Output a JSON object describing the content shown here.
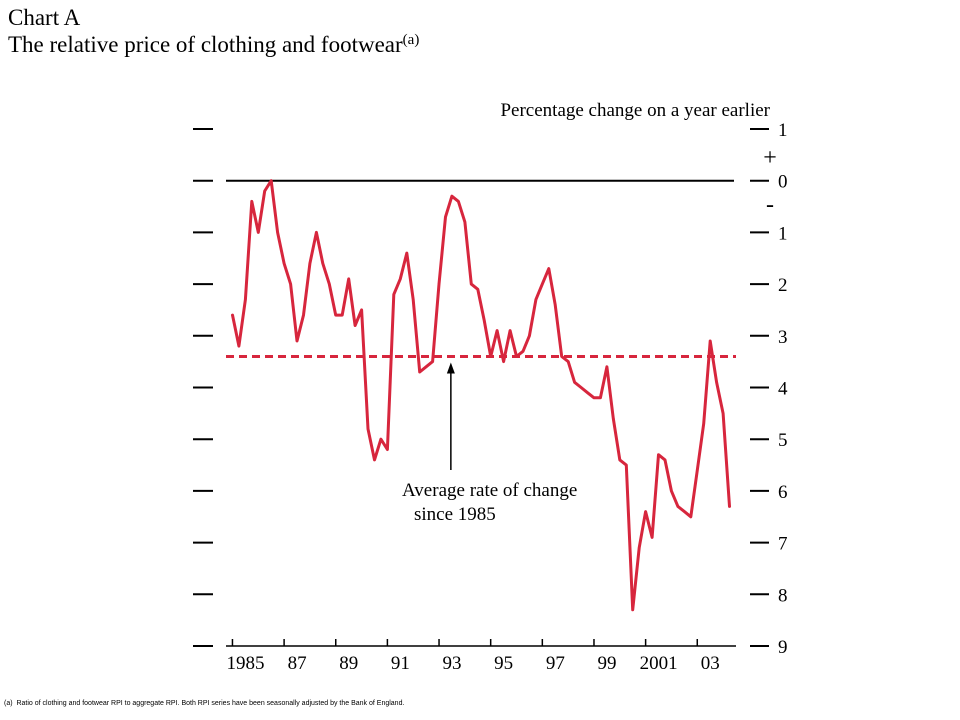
{
  "header": {
    "chart_label": "Chart A",
    "title": "The relative price of clothing and footwear",
    "title_note": "(a)"
  },
  "footnote": {
    "marker": "(a)",
    "text": "Ratio of clothing and footwear RPI to aggregate RPI.  Both RPI series have been seasonally adjusted by the Bank of England."
  },
  "chart_data": {
    "type": "line",
    "title": "The relative price of clothing and footwear",
    "ylabel": "Percentage change on a year earlier",
    "xlabel": "",
    "ylim": [
      -9,
      1
    ],
    "xlim": [
      1984.75,
      2004.5
    ],
    "y_ticks": [
      1,
      0,
      -1,
      -2,
      -3,
      -4,
      -5,
      -6,
      -7,
      -8,
      -9
    ],
    "y_tick_labels": [
      "1",
      "0",
      "1",
      "2",
      "3",
      "4",
      "5",
      "6",
      "7",
      "8",
      "9"
    ],
    "sign_labels": {
      "plus": "+",
      "minus": "-"
    },
    "x_ticks": [
      1985,
      1987,
      1989,
      1991,
      1993,
      1995,
      1997,
      1999,
      2001,
      2003
    ],
    "x_tick_labels": [
      "1985",
      "87",
      "89",
      "91",
      "93",
      "95",
      "97",
      "99",
      "2001",
      "03"
    ],
    "grid": false,
    "colors": {
      "series": "#d7263d",
      "axis": "#000000"
    },
    "series": [
      {
        "style": "solid",
        "x": [
          1985.0,
          1985.25,
          1985.5,
          1985.75,
          1986.0,
          1986.25,
          1986.5,
          1986.75,
          1987.0,
          1987.25,
          1987.5,
          1987.75,
          1988.0,
          1988.25,
          1988.5,
          1988.75,
          1989.0,
          1989.25,
          1989.5,
          1989.75,
          1990.0,
          1990.25,
          1990.5,
          1990.75,
          1991.0,
          1991.25,
          1991.5,
          1991.75,
          1992.0,
          1992.25,
          1992.5,
          1992.75,
          1993.0,
          1993.25,
          1993.5,
          1993.75,
          1994.0,
          1994.25,
          1994.5,
          1994.75,
          1995.0,
          1995.25,
          1995.5,
          1995.75,
          1996.0,
          1996.25,
          1996.5,
          1996.75,
          1997.0,
          1997.25,
          1997.5,
          1997.75,
          1998.0,
          1998.25,
          1998.5,
          1998.75,
          1999.0,
          1999.25,
          1999.5,
          1999.75,
          2000.0,
          2000.25,
          2000.5,
          2000.75,
          2001.0,
          2001.25,
          2001.5,
          2001.75,
          2002.0,
          2002.25,
          2002.5,
          2002.75,
          2003.0,
          2003.25,
          2003.5,
          2003.75,
          2004.0,
          2004.25
        ],
        "values": [
          -2.6,
          -3.2,
          -2.3,
          -0.4,
          -1.0,
          -0.2,
          0.0,
          -1.0,
          -1.6,
          -2.0,
          -3.1,
          -2.6,
          -1.6,
          -1.0,
          -1.6,
          -2.0,
          -2.6,
          -2.6,
          -1.9,
          -2.8,
          -2.5,
          -4.8,
          -5.4,
          -5.0,
          -5.2,
          -2.2,
          -1.9,
          -1.4,
          -2.3,
          -3.7,
          -3.6,
          -3.5,
          -2.0,
          -0.7,
          -0.3,
          -0.4,
          -0.8,
          -2.0,
          -2.1,
          -2.7,
          -3.4,
          -2.9,
          -3.5,
          -2.9,
          -3.4,
          -3.3,
          -3.0,
          -2.3,
          -2.0,
          -1.7,
          -2.4,
          -3.4,
          -3.5,
          -3.9,
          -4.0,
          -4.1,
          -4.2,
          -4.2,
          -3.6,
          -4.6,
          -5.4,
          -5.5,
          -8.3,
          -7.1,
          -6.4,
          -6.9,
          -5.3,
          -5.4,
          -6.0,
          -6.3,
          -6.4,
          -6.5,
          -5.6,
          -4.7,
          -3.1,
          -3.9,
          -4.5,
          -6.3
        ]
      },
      {
        "style": "dashed",
        "x": [
          1984.75,
          2004.5
        ],
        "values": [
          -3.4,
          -3.4
        ]
      }
    ],
    "annotations": [
      {
        "lines": [
          "Average rate of change",
          "since 1985"
        ],
        "x": 1994.0,
        "y": -3.4
      }
    ]
  }
}
